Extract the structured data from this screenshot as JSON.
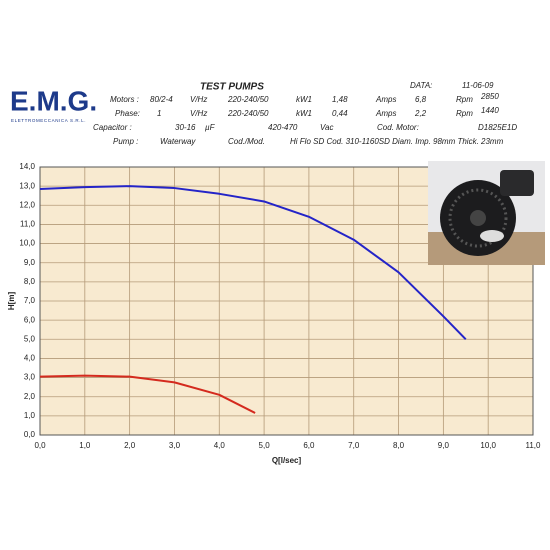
{
  "logo": {
    "name": "E.M.G.",
    "subtitle": "ELETTROMECCANICA S.R.L."
  },
  "header": {
    "title": "TEST PUMPS",
    "date_label": "DATA:",
    "date": "11-06-09",
    "rows": [
      [
        "Motors :",
        "80/2-4",
        "V/Hz",
        "220-240/50",
        "kW1",
        "1,48",
        "Amps",
        "6,8",
        "Rpm",
        "2850"
      ],
      [
        "Phase:",
        "1",
        "V/Hz",
        "220-240/50",
        "kW1",
        "0,44",
        "Amps",
        "2,2",
        "Rpm",
        "1440"
      ],
      [
        "Capacitor :",
        "30-16",
        "µF",
        "420-470",
        "Vac",
        "Cod. Motor:",
        "D1825E1D"
      ],
      [
        "Pump :",
        "Waterway",
        "Cod./Mod.",
        "Hi Flo SD Cod. 310-1160SD Diam. Imp. 98mm Thick. 23mm"
      ]
    ]
  },
  "chart_data": {
    "type": "line",
    "x_label": "Q[l/sec]",
    "y_label": "H[m]",
    "xlim": [
      0,
      11
    ],
    "ylim": [
      0,
      14
    ],
    "grid": true,
    "xticks": [
      {
        "value": 0,
        "label": "0,0"
      },
      {
        "value": 1,
        "label": "1,0"
      },
      {
        "value": 2,
        "label": "2,0"
      },
      {
        "value": 3,
        "label": "3,0"
      },
      {
        "value": 4,
        "label": "4,0"
      },
      {
        "value": 5,
        "label": "5,0"
      },
      {
        "value": 6,
        "label": "6,0"
      },
      {
        "value": 7,
        "label": "7,0"
      },
      {
        "value": 8,
        "label": "8,0"
      },
      {
        "value": 9,
        "label": "9,0"
      },
      {
        "value": 10,
        "label": "10,0"
      },
      {
        "value": 11,
        "label": "11,0"
      }
    ],
    "yticks": [
      {
        "value": 0,
        "label": "0,0"
      },
      {
        "value": 1,
        "label": "1,0"
      },
      {
        "value": 2,
        "label": "2,0"
      },
      {
        "value": 3,
        "label": "3,0"
      },
      {
        "value": 4,
        "label": "4,0"
      },
      {
        "value": 5,
        "label": "5,0"
      },
      {
        "value": 6,
        "label": "6,0"
      },
      {
        "value": 7,
        "label": "7,0"
      },
      {
        "value": 8,
        "label": "8,0"
      },
      {
        "value": 9,
        "label": "9,0"
      },
      {
        "value": 10,
        "label": "10,0"
      },
      {
        "value": 11,
        "label": "11,0"
      },
      {
        "value": 12,
        "label": "12,0"
      },
      {
        "value": 13,
        "label": "13,0"
      },
      {
        "value": 14,
        "label": "14,0"
      }
    ],
    "series": [
      {
        "color": "#2424c8",
        "x": [
          0,
          1,
          2,
          3,
          4,
          5,
          6,
          7,
          8,
          9,
          9.5
        ],
        "values": [
          12.85,
          12.95,
          13.0,
          12.9,
          12.6,
          12.2,
          11.4,
          10.2,
          8.5,
          6.2,
          5.0
        ]
      },
      {
        "color": "#d42a1e",
        "x": [
          0,
          1,
          2,
          3,
          4,
          4.8
        ],
        "values": [
          3.05,
          3.1,
          3.05,
          2.75,
          2.1,
          1.15
        ]
      }
    ]
  }
}
